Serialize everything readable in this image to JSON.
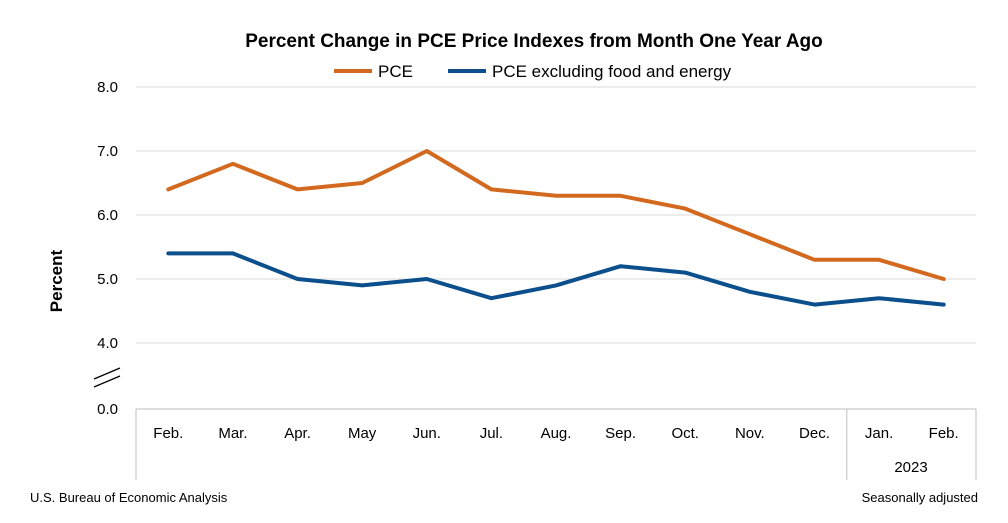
{
  "chart_data": {
    "type": "line",
    "title": "Percent Change in PCE Price Indexes from Month One Year Ago",
    "ylabel": "Percent",
    "xlabel": "",
    "categories": [
      "Feb.",
      "Mar.",
      "Apr.",
      "May",
      "Jun.",
      "Jul.",
      "Aug.",
      "Sep.",
      "Oct.",
      "Nov.",
      "Dec.",
      "Jan.",
      "Feb."
    ],
    "year_label": "2023",
    "y_ticks": [
      "0.0",
      "4.0",
      "5.0",
      "6.0",
      "7.0",
      "8.0"
    ],
    "ylim": [
      4.0,
      8.0
    ],
    "axis_break": true,
    "grid": true,
    "legend_position": "top",
    "series": [
      {
        "name": "PCE",
        "color": "#D2691E",
        "values": [
          6.4,
          6.8,
          6.4,
          6.5,
          7.0,
          6.4,
          6.3,
          6.3,
          6.1,
          5.7,
          5.3,
          5.3,
          5.0
        ]
      },
      {
        "name": "PCE excluding food and energy",
        "color": "#0B4F8C",
        "values": [
          5.4,
          5.4,
          5.0,
          4.9,
          5.0,
          4.7,
          4.9,
          5.2,
          5.1,
          4.8,
          4.6,
          4.7,
          4.6
        ]
      }
    ]
  },
  "footer": {
    "source": "U.S. Bureau of Economic Analysis",
    "note": "Seasonally adjusted"
  }
}
